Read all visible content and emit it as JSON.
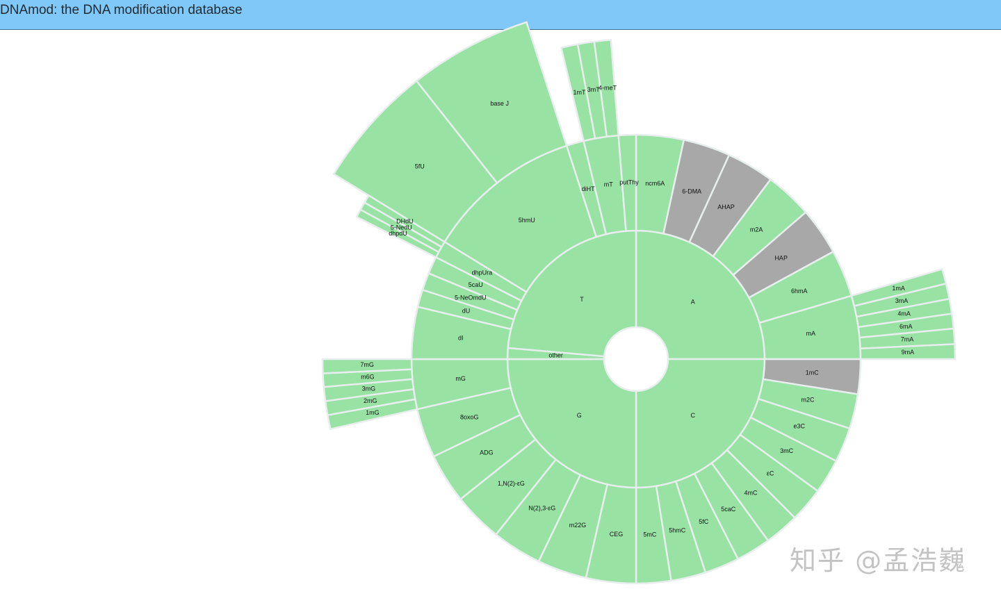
{
  "header": {
    "title": "DNAmod: the DNA modification database"
  },
  "colors": {
    "modified": "#98e2a4",
    "unmodified": "#a8a8a8",
    "hole": "#ffffff"
  },
  "sunburst": {
    "center_label": "",
    "nodes": [
      {
        "name": "A",
        "children": [
          {
            "name": "ncm6A"
          },
          {
            "name": "6-DMA",
            "status": "unmodified"
          },
          {
            "name": "AHAP",
            "status": "unmodified"
          },
          {
            "name": "m2A"
          },
          {
            "name": "HAP",
            "status": "unmodified"
          },
          {
            "name": "6hmA"
          },
          {
            "name": "mA",
            "children": [
              {
                "name": "1mA"
              },
              {
                "name": "3mA"
              },
              {
                "name": "4mA"
              },
              {
                "name": "6mA"
              },
              {
                "name": "7mA"
              },
              {
                "name": "9mA"
              }
            ]
          }
        ]
      },
      {
        "name": "C",
        "children": [
          {
            "name": "1mC",
            "status": "unmodified"
          },
          {
            "name": "m2C"
          },
          {
            "name": "e3C"
          },
          {
            "name": "3mC"
          },
          {
            "name": "εC"
          },
          {
            "name": "4mC"
          },
          {
            "name": "5caC"
          },
          {
            "name": "5fC"
          },
          {
            "name": "5hmC"
          },
          {
            "name": "5mC"
          }
        ]
      },
      {
        "name": "G",
        "children": [
          {
            "name": "CEG"
          },
          {
            "name": "m22G"
          },
          {
            "name": "N(2),3-εG"
          },
          {
            "name": "1,N(2)-εG"
          },
          {
            "name": "ADG"
          },
          {
            "name": "8oxoG"
          },
          {
            "name": "mG",
            "children": [
              {
                "name": "1mG"
              },
              {
                "name": "2mG"
              },
              {
                "name": "3mG"
              },
              {
                "name": "m6G"
              },
              {
                "name": "7mG"
              }
            ]
          }
        ]
      },
      {
        "name": "other",
        "children": [
          {
            "name": "dI"
          }
        ]
      },
      {
        "name": "T",
        "children": [
          {
            "name": "dU"
          },
          {
            "name": "5-NeOmdU"
          },
          {
            "name": "5caU"
          },
          {
            "name": "dhpUra",
            "children": [
              {
                "name": "dhpdU"
              },
              {
                "name": "5-NedU"
              },
              {
                "name": "DHdU"
              }
            ]
          },
          {
            "name": "5hmU",
            "children": [
              {
                "name": "5fU"
              },
              {
                "name": "base J"
              }
            ]
          },
          {
            "name": "diHT"
          },
          {
            "name": "mT",
            "children": [
              {
                "name": "1mT"
              },
              {
                "name": "3mT"
              },
              {
                "name": "4-meT"
              }
            ]
          },
          {
            "name": "putThy"
          }
        ]
      }
    ]
  },
  "watermark": "知乎 @孟浩巍"
}
